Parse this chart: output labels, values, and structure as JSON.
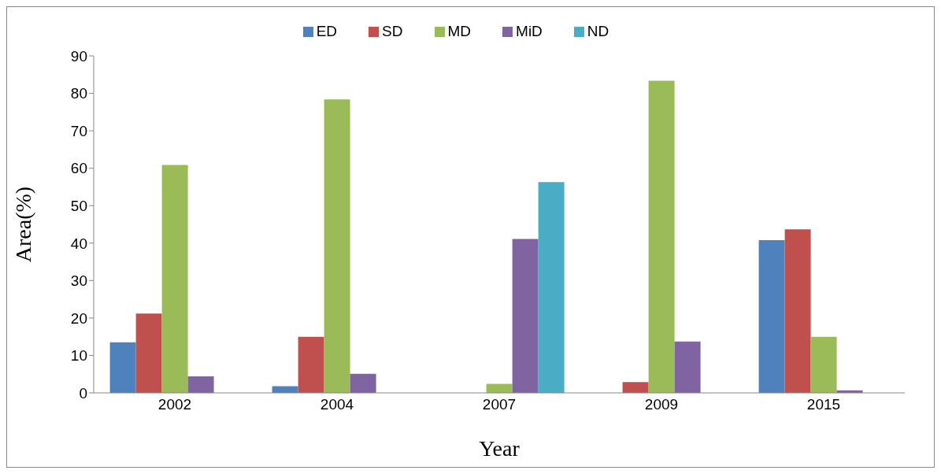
{
  "chart_data": {
    "type": "bar",
    "xlabel": "Year",
    "ylabel": "Area(%)",
    "categories": [
      "2002",
      "2004",
      "2007",
      "2009",
      "2015"
    ],
    "series": [
      {
        "name": "ED",
        "color": "#4f81bd",
        "values": [
          13.5,
          1.8,
          0,
          0,
          40.8
        ]
      },
      {
        "name": "SD",
        "color": "#c0504d",
        "values": [
          21.2,
          15,
          0,
          2.9,
          43.7
        ]
      },
      {
        "name": "MD",
        "color": "#9bbb59",
        "values": [
          60.9,
          78.4,
          2.4,
          83.4,
          15
        ]
      },
      {
        "name": "MiD",
        "color": "#8064a2",
        "values": [
          4.4,
          5.1,
          41.1,
          13.7,
          0.7
        ]
      },
      {
        "name": "ND",
        "color": "#4bacc6",
        "values": [
          0,
          0,
          56.3,
          0,
          0
        ]
      }
    ],
    "ylim": [
      0,
      90
    ],
    "yticks": [
      0,
      10,
      20,
      30,
      40,
      50,
      60,
      70,
      80,
      90
    ],
    "grid": false,
    "legend": "top"
  }
}
